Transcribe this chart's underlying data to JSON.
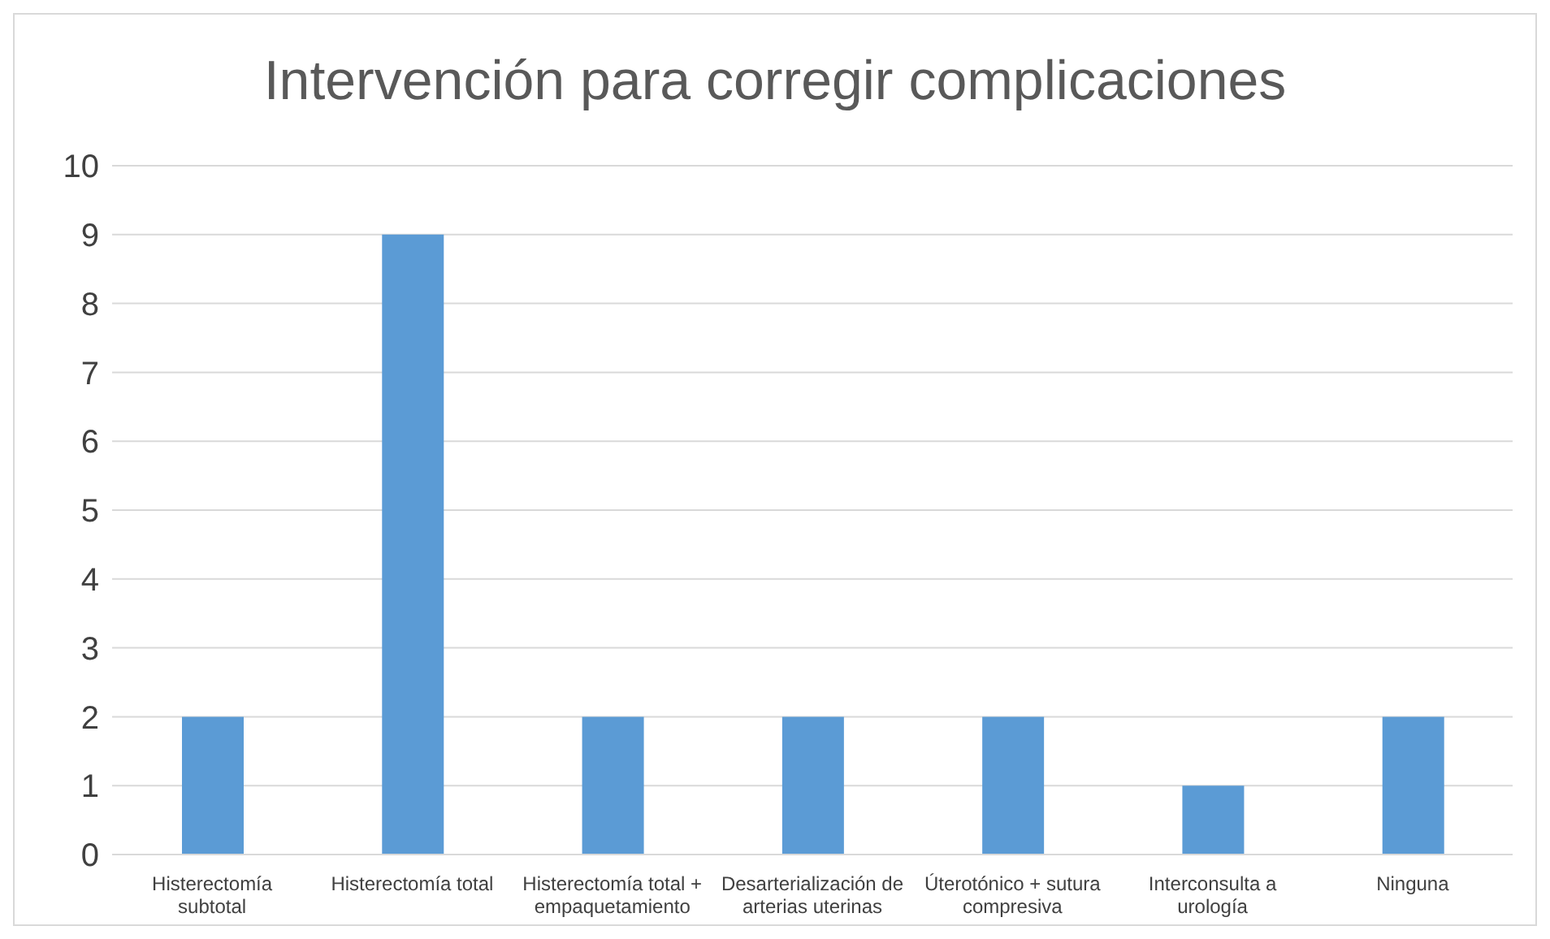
{
  "chart_data": {
    "type": "bar",
    "title": "Intervención para corregir complicaciones",
    "categories": [
      "Histerectomía subtotal",
      "Histerectomía total",
      "Histerectomía total + empaquetamiento",
      "Desarterialización de arterias uterinas",
      "Úterotónico + sutura compresiva",
      "Interconsulta a urología",
      "Ninguna"
    ],
    "values": [
      2,
      9,
      2,
      2,
      2,
      1,
      2
    ],
    "color": "#5b9bd5",
    "ylim": [
      0,
      10
    ],
    "yticks": [
      0,
      1,
      2,
      3,
      4,
      5,
      6,
      7,
      8,
      9,
      10
    ],
    "grid": "y"
  }
}
